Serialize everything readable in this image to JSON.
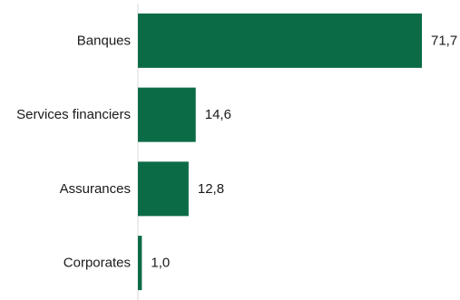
{
  "chart_data": {
    "type": "bar",
    "orientation": "horizontal",
    "categories": [
      "Banques",
      "Services financiers",
      "Assurances",
      "Corporates"
    ],
    "values": [
      71.7,
      14.6,
      12.8,
      1.0
    ],
    "value_labels": [
      "71,7",
      "14,6",
      "12,8",
      "1,0"
    ],
    "xlim": [
      0,
      71.7
    ],
    "bar_color": "#0c6b47",
    "axis_color": "#d9d9d9",
    "grid": false,
    "legend": "none"
  }
}
